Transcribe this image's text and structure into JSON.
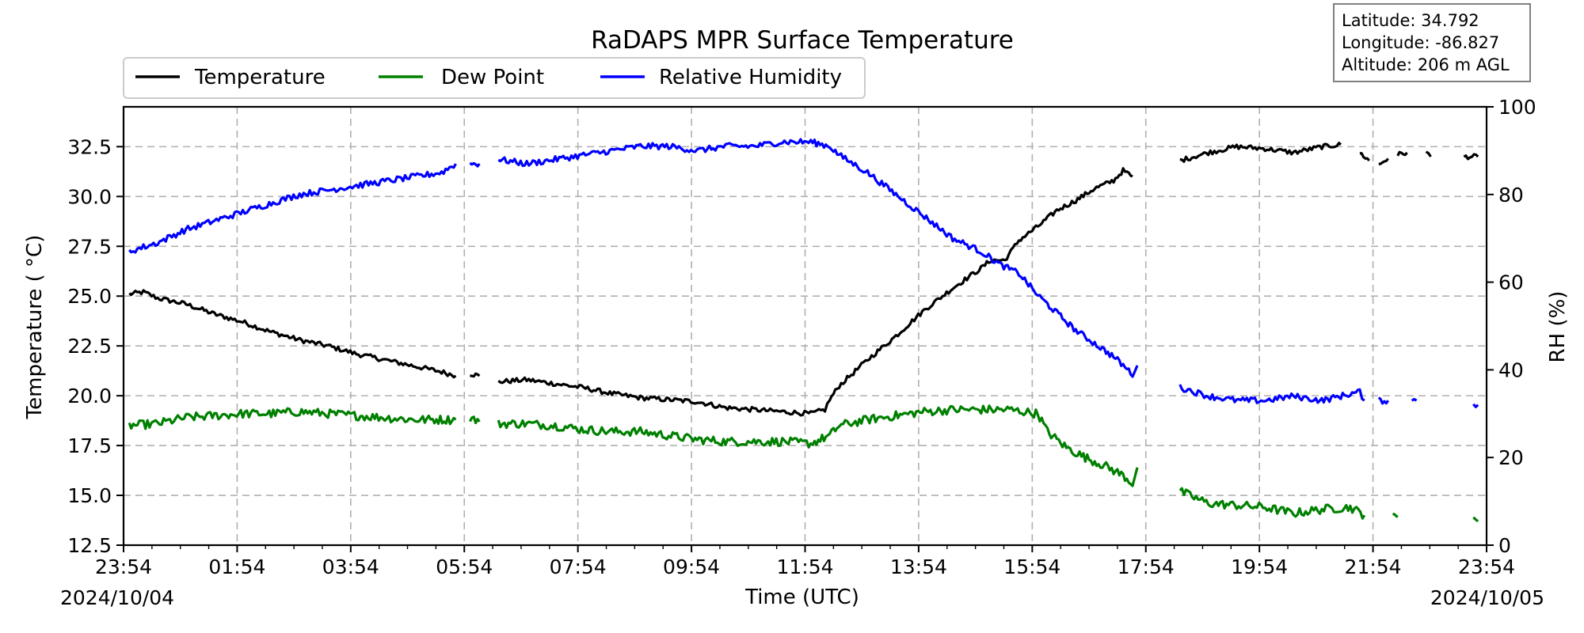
{
  "chart_data": {
    "type": "line",
    "title": "RaDAPS MPR Surface Temperature",
    "xlabel": "Time (UTC)",
    "ylabel": "Temperature ( °C)",
    "y2label": "RH (%)",
    "xlim": [
      "23:54",
      "23:54"
    ],
    "ylim": [
      12.5,
      34.5
    ],
    "y2lim": [
      0,
      100
    ],
    "x_ticks": [
      "23:54",
      "01:54",
      "03:54",
      "05:54",
      "07:54",
      "09:54",
      "11:54",
      "13:54",
      "15:54",
      "17:54",
      "19:54",
      "21:54",
      "23:54"
    ],
    "y_ticks": [
      "12.5",
      "15.0",
      "17.5",
      "20.0",
      "22.5",
      "25.0",
      "27.5",
      "30.0",
      "32.5"
    ],
    "y2_ticks": [
      "0",
      "20",
      "40",
      "60",
      "80",
      "100"
    ],
    "date_start": "2024/10/04",
    "date_end": "2024/10/05",
    "grid": true,
    "legend_position": "top-left",
    "info_box": {
      "latitude": "Latitude: 34.792",
      "longitude": "Longitude: -86.827",
      "altitude": "Altitude: 206 m AGL"
    },
    "series": [
      {
        "name": "Temperature",
        "axis": "left",
        "color": "#000000",
        "segments": [
          [
            [
              "00:00",
              25.1
            ],
            [
              "00:15",
              25.2
            ],
            [
              "00:30",
              24.9
            ],
            [
              "01:00",
              24.6
            ],
            [
              "01:30",
              24.1
            ],
            [
              "02:00",
              23.7
            ],
            [
              "02:30",
              23.2
            ],
            [
              "03:00",
              22.8
            ],
            [
              "03:30",
              22.5
            ],
            [
              "04:00",
              22.1
            ],
            [
              "04:30",
              21.8
            ],
            [
              "05:00",
              21.5
            ],
            [
              "05:30",
              21.2
            ],
            [
              "05:45",
              21.0
            ]
          ],
          [
            [
              "06:00",
              21.1
            ],
            [
              "06:10",
              21.0
            ]
          ],
          [
            [
              "06:30",
              20.7
            ],
            [
              "07:00",
              20.8
            ],
            [
              "07:30",
              20.6
            ],
            [
              "08:00",
              20.4
            ],
            [
              "08:30",
              20.1
            ],
            [
              "09:00",
              19.9
            ],
            [
              "09:30",
              19.8
            ],
            [
              "10:00",
              19.7
            ],
            [
              "10:30",
              19.4
            ],
            [
              "11:00",
              19.3
            ],
            [
              "11:30",
              19.2
            ],
            [
              "12:00",
              19.1
            ],
            [
              "12:15",
              19.3
            ],
            [
              "12:20",
              19.8
            ],
            [
              "12:30",
              20.5
            ],
            [
              "13:00",
              21.8
            ],
            [
              "13:30",
              23.0
            ],
            [
              "14:00",
              24.3
            ],
            [
              "14:30",
              25.4
            ],
            [
              "15:00",
              26.4
            ],
            [
              "15:10",
              26.8
            ],
            [
              "15:25",
              26.8
            ],
            [
              "15:40",
              27.8
            ],
            [
              "16:00",
              28.5
            ],
            [
              "16:20",
              29.3
            ],
            [
              "16:40",
              29.8
            ],
            [
              "17:00",
              30.4
            ],
            [
              "17:20",
              30.8
            ],
            [
              "17:30",
              31.3
            ],
            [
              "17:40",
              31.0
            ]
          ],
          [
            [
              "18:30",
              31.8
            ],
            [
              "19:00",
              32.2
            ],
            [
              "19:30",
              32.5
            ],
            [
              "20:00",
              32.4
            ],
            [
              "20:30",
              32.2
            ],
            [
              "21:00",
              32.5
            ],
            [
              "21:20",
              32.6
            ]
          ],
          [
            [
              "21:40",
              32.2
            ],
            [
              "21:50",
              31.8
            ]
          ],
          [
            [
              "22:00",
              31.6
            ],
            [
              "22:10",
              31.9
            ]
          ],
          [
            [
              "22:20",
              32.1
            ],
            [
              "22:30",
              32.2
            ]
          ],
          [
            [
              "22:50",
              32.2
            ],
            [
              "22:55",
              32.0
            ]
          ],
          [
            [
              "23:30",
              32.0
            ],
            [
              "23:45",
              32.0
            ]
          ]
        ]
      },
      {
        "name": "Dew Point",
        "axis": "left",
        "color": "#008000",
        "segments": [
          [
            [
              "00:00",
              18.5
            ],
            [
              "00:30",
              18.6
            ],
            [
              "01:00",
              18.9
            ],
            [
              "01:30",
              19.0
            ],
            [
              "02:00",
              19.1
            ],
            [
              "02:30",
              19.1
            ],
            [
              "03:00",
              19.2
            ],
            [
              "03:30",
              19.1
            ],
            [
              "04:00",
              19.0
            ],
            [
              "04:30",
              18.9
            ],
            [
              "05:00",
              18.8
            ],
            [
              "05:45",
              18.8
            ]
          ],
          [
            [
              "06:00",
              18.9
            ],
            [
              "06:10",
              18.7
            ]
          ],
          [
            [
              "06:30",
              18.6
            ],
            [
              "07:00",
              18.6
            ],
            [
              "07:30",
              18.5
            ],
            [
              "08:00",
              18.3
            ],
            [
              "08:30",
              18.2
            ],
            [
              "09:00",
              18.2
            ],
            [
              "09:30",
              18.0
            ],
            [
              "10:00",
              17.8
            ],
            [
              "10:30",
              17.7
            ],
            [
              "11:00",
              17.7
            ],
            [
              "11:30",
              17.7
            ],
            [
              "12:00",
              17.6
            ],
            [
              "12:20",
              18.0
            ],
            [
              "12:30",
              18.5
            ],
            [
              "13:00",
              18.8
            ],
            [
              "13:30",
              19.0
            ],
            [
              "14:00",
              19.2
            ],
            [
              "14:30",
              19.3
            ],
            [
              "15:00",
              19.3
            ],
            [
              "15:30",
              19.3
            ],
            [
              "16:00",
              19.1
            ],
            [
              "16:10",
              18.2
            ],
            [
              "16:30",
              17.4
            ],
            [
              "16:50",
              16.9
            ],
            [
              "17:10",
              16.5
            ],
            [
              "17:30",
              16.0
            ],
            [
              "17:40",
              15.6
            ],
            [
              "17:45",
              16.4
            ]
          ],
          [
            [
              "18:30",
              15.2
            ],
            [
              "19:00",
              14.6
            ],
            [
              "19:30",
              14.5
            ],
            [
              "20:00",
              14.4
            ],
            [
              "20:30",
              14.1
            ],
            [
              "21:00",
              14.3
            ],
            [
              "21:30",
              14.4
            ],
            [
              "21:45",
              14.0
            ]
          ],
          [
            [
              "22:15",
              14.2
            ],
            [
              "22:20",
              13.9
            ]
          ],
          [
            [
              "23:40",
              13.7
            ],
            [
              "23:45",
              13.7
            ]
          ]
        ]
      },
      {
        "name": "Relative Humidity",
        "axis": "right",
        "color": "#0000ff",
        "segments": [
          [
            [
              "00:00",
              67
            ],
            [
              "00:30",
              69
            ],
            [
              "01:00",
              72
            ],
            [
              "01:30",
              74
            ],
            [
              "02:00",
              76
            ],
            [
              "02:30",
              78
            ],
            [
              "03:00",
              80
            ],
            [
              "03:30",
              81
            ],
            [
              "04:00",
              82
            ],
            [
              "04:30",
              83
            ],
            [
              "05:00",
              84
            ],
            [
              "05:30",
              85
            ],
            [
              "05:45",
              87
            ]
          ],
          [
            [
              "06:00",
              87
            ],
            [
              "06:10",
              87
            ]
          ],
          [
            [
              "06:30",
              88
            ],
            [
              "07:00",
              87
            ],
            [
              "07:30",
              88
            ],
            [
              "08:00",
              89
            ],
            [
              "08:30",
              90
            ],
            [
              "09:00",
              91
            ],
            [
              "09:30",
              91
            ],
            [
              "10:00",
              90
            ],
            [
              "10:30",
              91
            ],
            [
              "11:00",
              91
            ],
            [
              "11:30",
              92
            ],
            [
              "12:00",
              92
            ],
            [
              "12:20",
              91
            ],
            [
              "12:30",
              89
            ],
            [
              "13:00",
              85
            ],
            [
              "13:30",
              80
            ],
            [
              "14:00",
              75
            ],
            [
              "14:30",
              70
            ],
            [
              "15:00",
              67
            ],
            [
              "15:20",
              64
            ],
            [
              "15:40",
              62
            ],
            [
              "16:00",
              57
            ],
            [
              "16:20",
              53
            ],
            [
              "16:40",
              49
            ],
            [
              "17:00",
              46
            ],
            [
              "17:20",
              43
            ],
            [
              "17:30",
              41
            ],
            [
              "17:40",
              39
            ],
            [
              "17:45",
              41
            ]
          ],
          [
            [
              "18:30",
              36
            ],
            [
              "19:00",
              34
            ],
            [
              "19:30",
              33
            ],
            [
              "20:00",
              33
            ],
            [
              "20:30",
              34
            ],
            [
              "21:00",
              33
            ],
            [
              "21:20",
              34
            ],
            [
              "21:40",
              35
            ],
            [
              "21:45",
              33
            ]
          ],
          [
            [
              "22:00",
              33
            ],
            [
              "22:10",
              33
            ]
          ],
          [
            [
              "22:35",
              33
            ],
            [
              "22:40",
              33
            ]
          ],
          [
            [
              "23:40",
              32
            ],
            [
              "23:45",
              32
            ]
          ]
        ]
      }
    ]
  }
}
